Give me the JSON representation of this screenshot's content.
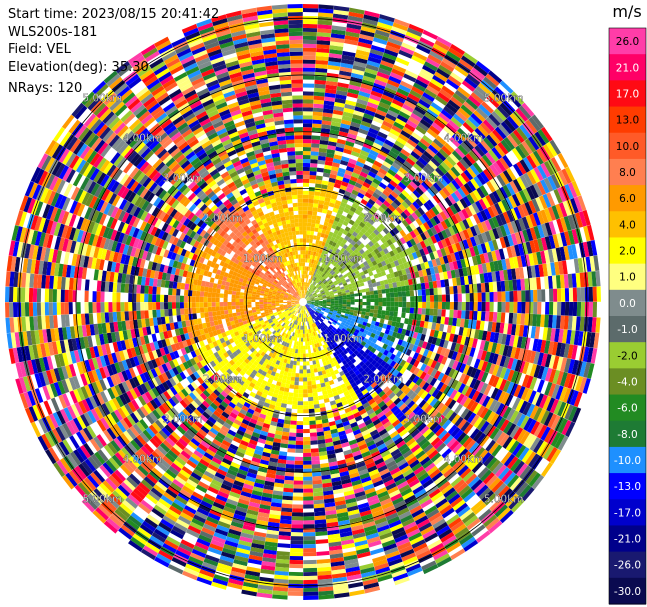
{
  "header": {
    "start_time": "Start time: 2023/08/15 20:41:42",
    "radar_name": "WLS200s-181",
    "field": "Field: VEL",
    "elevation": "Elevation(deg): 35.30",
    "nrays": "NRays: 120"
  },
  "chart_data": {
    "type": "heatmap",
    "projection": "polar-ppi",
    "field": "VEL",
    "units": "m/s",
    "nrays": 120,
    "range_rings_km": [
      1.0,
      2.0,
      3.0,
      4.0,
      5.0
    ],
    "ring_labels": [
      "1.00km",
      "2.00km",
      "3.00km",
      "4.00km",
      "5.00km"
    ],
    "max_range_km": 5.25,
    "colorbar": {
      "label": "m/s",
      "ticks": [
        "26.0",
        "21.0",
        "17.0",
        "13.0",
        "10.0",
        "8.0",
        "6.0",
        "4.0",
        "2.0",
        "1.0",
        "0.0",
        "-1.0",
        "-2.0",
        "-4.0",
        "-6.0",
        "-8.0",
        "-10.0",
        "-13.0",
        "-17.0",
        "-21.0",
        "-26.0",
        "-30.0"
      ],
      "colors": [
        "#ff3da8",
        "#ff0066",
        "#ff0a14",
        "#ff3c00",
        "#ff5a28",
        "#ff7f50",
        "#ff9a00",
        "#ffc000",
        "#ffff00",
        "#ffff80",
        "#7f8c8d",
        "#5c6b6b",
        "#9acd32",
        "#6b8e23",
        "#228b22",
        "#1e7b34",
        "#1e90ff",
        "#0000ff",
        "#0000cd",
        "#00008b",
        "#191970",
        "#0a0a50"
      ]
    },
    "near_field": {
      "radius_km": 2.1,
      "sectors": [
        {
          "from_deg": 0,
          "to_deg": 20,
          "value": 4.0
        },
        {
          "from_deg": 20,
          "to_deg": 80,
          "value": -2.0
        },
        {
          "from_deg": 80,
          "to_deg": 105,
          "value": -6.0
        },
        {
          "from_deg": 105,
          "to_deg": 125,
          "value": -10.0
        },
        {
          "from_deg": 125,
          "to_deg": 150,
          "value": -17.0
        },
        {
          "from_deg": 150,
          "to_deg": 200,
          "value": 2.0
        },
        {
          "from_deg": 200,
          "to_deg": 250,
          "value": 2.0
        },
        {
          "from_deg": 250,
          "to_deg": 300,
          "value": 6.0
        },
        {
          "from_deg": 300,
          "to_deg": 330,
          "value": 8.0
        },
        {
          "from_deg": 330,
          "to_deg": 360,
          "value": 4.0
        }
      ]
    }
  }
}
